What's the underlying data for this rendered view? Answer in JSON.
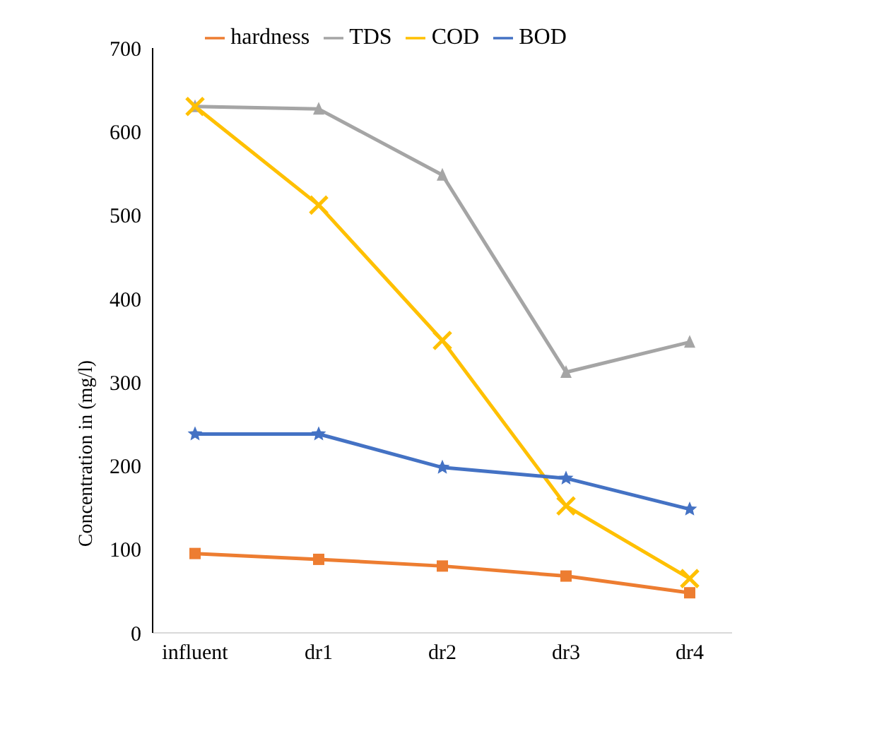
{
  "chart_data": {
    "type": "line",
    "ylabel": "Concentration in (mg/l)",
    "categories": [
      "influent",
      "dr1",
      "dr2",
      "dr3",
      "dr4"
    ],
    "ylim": [
      0,
      700
    ],
    "yticks": [
      0,
      100,
      200,
      300,
      400,
      500,
      600,
      700
    ],
    "grid": false,
    "legend": "top",
    "series": [
      {
        "name": "hardness",
        "color": "#ed7d31",
        "marker": "square",
        "values": [
          95,
          88,
          80,
          68,
          48
        ]
      },
      {
        "name": "TDS",
        "color": "#a5a5a5",
        "marker": "triangle",
        "values": [
          630,
          627,
          548,
          312,
          348
        ]
      },
      {
        "name": "COD",
        "color": "#ffc000",
        "marker": "cross",
        "values": [
          630,
          512,
          350,
          152,
          65
        ]
      },
      {
        "name": "BOD",
        "color": "#4472c4",
        "marker": "star",
        "values": [
          238,
          238,
          198,
          185,
          148
        ]
      }
    ]
  }
}
